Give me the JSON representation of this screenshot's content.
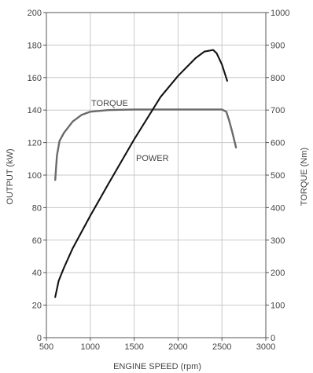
{
  "chart_data": {
    "type": "line",
    "xlabel": "ENGINE SPEED (rpm)",
    "ylabel_left": "OUTPUT (kW)",
    "ylabel_right": "TORQUE (Nm)",
    "xlim": [
      500,
      3000
    ],
    "ylim_left": [
      0,
      200
    ],
    "ylim_right": [
      0,
      1000
    ],
    "x_ticks": [
      "500",
      "1000",
      "1500",
      "2000",
      "2500",
      "3000"
    ],
    "y_ticks_left": [
      "0",
      "20",
      "40",
      "60",
      "80",
      "100",
      "120",
      "140",
      "160",
      "180",
      "200"
    ],
    "y_ticks_right": [
      "0",
      "100",
      "200",
      "300",
      "400",
      "500",
      "600",
      "700",
      "800",
      "900",
      "1000"
    ],
    "grid": true,
    "series": [
      {
        "name": "TORQUE",
        "axis": "right",
        "color": "#6b6b6b",
        "points": [
          [
            600,
            485
          ],
          [
            620,
            560
          ],
          [
            650,
            605
          ],
          [
            700,
            630
          ],
          [
            800,
            665
          ],
          [
            900,
            685
          ],
          [
            1000,
            695
          ],
          [
            1200,
            700
          ],
          [
            1500,
            702
          ],
          [
            2000,
            702
          ],
          [
            2500,
            702
          ],
          [
            2550,
            695
          ],
          [
            2580,
            670
          ],
          [
            2620,
            630
          ],
          [
            2660,
            585
          ]
        ]
      },
      {
        "name": "POWER",
        "axis": "left",
        "color": "#111111",
        "points": [
          [
            600,
            25
          ],
          [
            640,
            35
          ],
          [
            700,
            43
          ],
          [
            800,
            55
          ],
          [
            1000,
            75
          ],
          [
            1200,
            94
          ],
          [
            1500,
            122
          ],
          [
            1800,
            148
          ],
          [
            2000,
            161
          ],
          [
            2200,
            172
          ],
          [
            2300,
            176
          ],
          [
            2400,
            177
          ],
          [
            2440,
            175
          ],
          [
            2500,
            168
          ],
          [
            2560,
            158
          ]
        ]
      }
    ]
  }
}
